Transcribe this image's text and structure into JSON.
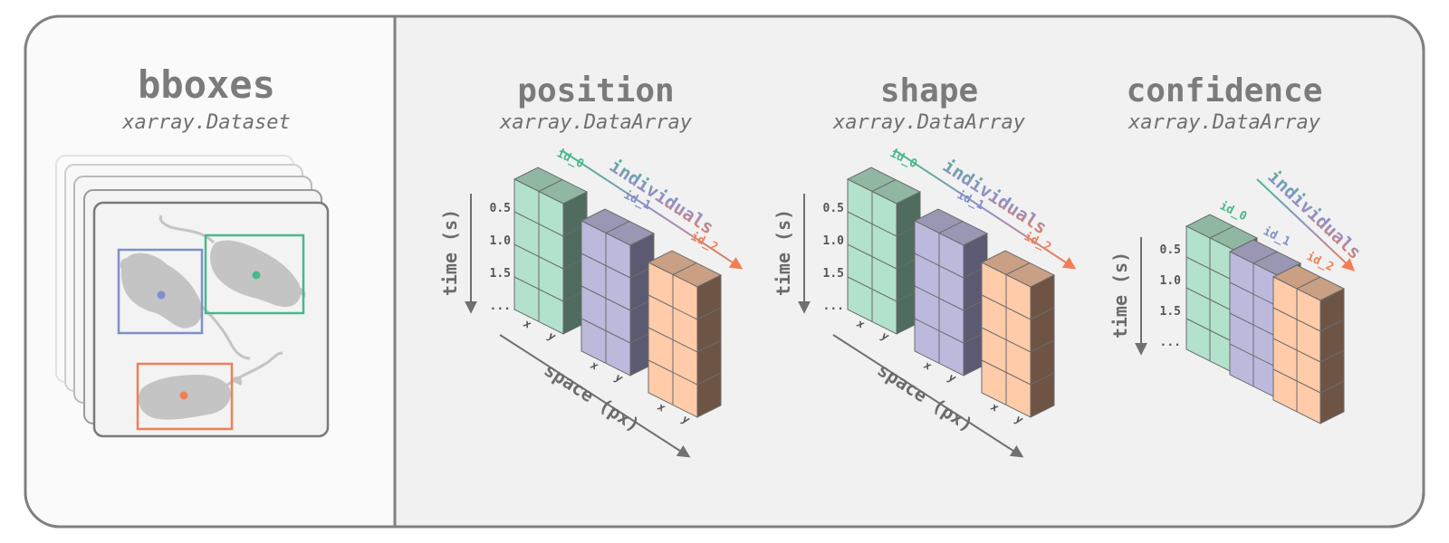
{
  "dataset_panel": {
    "title": "bboxes",
    "subtitle": "xarray.Dataset",
    "box_colors": [
      "#7f8fc9",
      "#48b98a",
      "#f07f55"
    ]
  },
  "arrays": [
    {
      "title": "position",
      "subtitle": "xarray.DataArray",
      "time_axis_label": "time (s)",
      "time_ticks": [
        "0.5",
        "1.0",
        "1.5",
        "..."
      ],
      "space_axis_label": "space (px)",
      "space_ticks": [
        "x",
        "y"
      ],
      "individuals_label": "individuals",
      "ids": [
        "id_0",
        "id_1",
        "id_2"
      ]
    },
    {
      "title": "shape",
      "subtitle": "xarray.DataArray",
      "time_axis_label": "time (s)",
      "time_ticks": [
        "0.5",
        "1.0",
        "1.5",
        "..."
      ],
      "space_axis_label": "space (px)",
      "space_ticks": [
        "x",
        "y"
      ],
      "individuals_label": "individuals",
      "ids": [
        "id_0",
        "id_1",
        "id_2"
      ]
    },
    {
      "title": "confidence",
      "subtitle": "xarray.DataArray",
      "time_axis_label": "time (s)",
      "time_ticks": [
        "0.5",
        "1.0",
        "1.5",
        "..."
      ],
      "individuals_label": "individuals",
      "ids": [
        "id_0",
        "id_1",
        "id_2"
      ]
    }
  ],
  "colors": {
    "id_0": "#48b98a",
    "id_1": "#7f8fc9",
    "id_2": "#f07f55",
    "axis": "#707070"
  }
}
